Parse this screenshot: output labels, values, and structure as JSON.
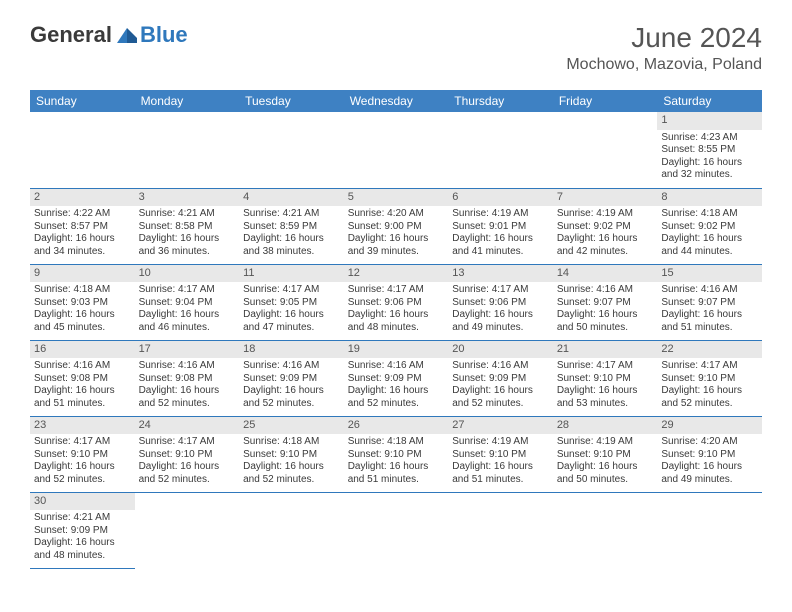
{
  "brand": {
    "general": "General",
    "blue": "Blue"
  },
  "header": {
    "title": "June 2024",
    "location": "Mochowo, Mazovia, Poland"
  },
  "colors": {
    "header_bg": "#3e81c3",
    "header_text": "#ffffff",
    "daynum_bg": "#e8e8e8",
    "border": "#2f78bc",
    "text": "#3a3a3a",
    "title": "#555555",
    "logo_blue": "#2f78bc"
  },
  "weekdays": [
    "Sunday",
    "Monday",
    "Tuesday",
    "Wednesday",
    "Thursday",
    "Friday",
    "Saturday"
  ],
  "weeks": [
    [
      null,
      null,
      null,
      null,
      null,
      null,
      {
        "n": "1",
        "sr": "Sunrise: 4:23 AM",
        "ss": "Sunset: 8:55 PM",
        "d1": "Daylight: 16 hours",
        "d2": "and 32 minutes."
      }
    ],
    [
      {
        "n": "2",
        "sr": "Sunrise: 4:22 AM",
        "ss": "Sunset: 8:57 PM",
        "d1": "Daylight: 16 hours",
        "d2": "and 34 minutes."
      },
      {
        "n": "3",
        "sr": "Sunrise: 4:21 AM",
        "ss": "Sunset: 8:58 PM",
        "d1": "Daylight: 16 hours",
        "d2": "and 36 minutes."
      },
      {
        "n": "4",
        "sr": "Sunrise: 4:21 AM",
        "ss": "Sunset: 8:59 PM",
        "d1": "Daylight: 16 hours",
        "d2": "and 38 minutes."
      },
      {
        "n": "5",
        "sr": "Sunrise: 4:20 AM",
        "ss": "Sunset: 9:00 PM",
        "d1": "Daylight: 16 hours",
        "d2": "and 39 minutes."
      },
      {
        "n": "6",
        "sr": "Sunrise: 4:19 AM",
        "ss": "Sunset: 9:01 PM",
        "d1": "Daylight: 16 hours",
        "d2": "and 41 minutes."
      },
      {
        "n": "7",
        "sr": "Sunrise: 4:19 AM",
        "ss": "Sunset: 9:02 PM",
        "d1": "Daylight: 16 hours",
        "d2": "and 42 minutes."
      },
      {
        "n": "8",
        "sr": "Sunrise: 4:18 AM",
        "ss": "Sunset: 9:02 PM",
        "d1": "Daylight: 16 hours",
        "d2": "and 44 minutes."
      }
    ],
    [
      {
        "n": "9",
        "sr": "Sunrise: 4:18 AM",
        "ss": "Sunset: 9:03 PM",
        "d1": "Daylight: 16 hours",
        "d2": "and 45 minutes."
      },
      {
        "n": "10",
        "sr": "Sunrise: 4:17 AM",
        "ss": "Sunset: 9:04 PM",
        "d1": "Daylight: 16 hours",
        "d2": "and 46 minutes."
      },
      {
        "n": "11",
        "sr": "Sunrise: 4:17 AM",
        "ss": "Sunset: 9:05 PM",
        "d1": "Daylight: 16 hours",
        "d2": "and 47 minutes."
      },
      {
        "n": "12",
        "sr": "Sunrise: 4:17 AM",
        "ss": "Sunset: 9:06 PM",
        "d1": "Daylight: 16 hours",
        "d2": "and 48 minutes."
      },
      {
        "n": "13",
        "sr": "Sunrise: 4:17 AM",
        "ss": "Sunset: 9:06 PM",
        "d1": "Daylight: 16 hours",
        "d2": "and 49 minutes."
      },
      {
        "n": "14",
        "sr": "Sunrise: 4:16 AM",
        "ss": "Sunset: 9:07 PM",
        "d1": "Daylight: 16 hours",
        "d2": "and 50 minutes."
      },
      {
        "n": "15",
        "sr": "Sunrise: 4:16 AM",
        "ss": "Sunset: 9:07 PM",
        "d1": "Daylight: 16 hours",
        "d2": "and 51 minutes."
      }
    ],
    [
      {
        "n": "16",
        "sr": "Sunrise: 4:16 AM",
        "ss": "Sunset: 9:08 PM",
        "d1": "Daylight: 16 hours",
        "d2": "and 51 minutes."
      },
      {
        "n": "17",
        "sr": "Sunrise: 4:16 AM",
        "ss": "Sunset: 9:08 PM",
        "d1": "Daylight: 16 hours",
        "d2": "and 52 minutes."
      },
      {
        "n": "18",
        "sr": "Sunrise: 4:16 AM",
        "ss": "Sunset: 9:09 PM",
        "d1": "Daylight: 16 hours",
        "d2": "and 52 minutes."
      },
      {
        "n": "19",
        "sr": "Sunrise: 4:16 AM",
        "ss": "Sunset: 9:09 PM",
        "d1": "Daylight: 16 hours",
        "d2": "and 52 minutes."
      },
      {
        "n": "20",
        "sr": "Sunrise: 4:16 AM",
        "ss": "Sunset: 9:09 PM",
        "d1": "Daylight: 16 hours",
        "d2": "and 52 minutes."
      },
      {
        "n": "21",
        "sr": "Sunrise: 4:17 AM",
        "ss": "Sunset: 9:10 PM",
        "d1": "Daylight: 16 hours",
        "d2": "and 53 minutes."
      },
      {
        "n": "22",
        "sr": "Sunrise: 4:17 AM",
        "ss": "Sunset: 9:10 PM",
        "d1": "Daylight: 16 hours",
        "d2": "and 52 minutes."
      }
    ],
    [
      {
        "n": "23",
        "sr": "Sunrise: 4:17 AM",
        "ss": "Sunset: 9:10 PM",
        "d1": "Daylight: 16 hours",
        "d2": "and 52 minutes."
      },
      {
        "n": "24",
        "sr": "Sunrise: 4:17 AM",
        "ss": "Sunset: 9:10 PM",
        "d1": "Daylight: 16 hours",
        "d2": "and 52 minutes."
      },
      {
        "n": "25",
        "sr": "Sunrise: 4:18 AM",
        "ss": "Sunset: 9:10 PM",
        "d1": "Daylight: 16 hours",
        "d2": "and 52 minutes."
      },
      {
        "n": "26",
        "sr": "Sunrise: 4:18 AM",
        "ss": "Sunset: 9:10 PM",
        "d1": "Daylight: 16 hours",
        "d2": "and 51 minutes."
      },
      {
        "n": "27",
        "sr": "Sunrise: 4:19 AM",
        "ss": "Sunset: 9:10 PM",
        "d1": "Daylight: 16 hours",
        "d2": "and 51 minutes."
      },
      {
        "n": "28",
        "sr": "Sunrise: 4:19 AM",
        "ss": "Sunset: 9:10 PM",
        "d1": "Daylight: 16 hours",
        "d2": "and 50 minutes."
      },
      {
        "n": "29",
        "sr": "Sunrise: 4:20 AM",
        "ss": "Sunset: 9:10 PM",
        "d1": "Daylight: 16 hours",
        "d2": "and 49 minutes."
      }
    ],
    [
      {
        "n": "30",
        "sr": "Sunrise: 4:21 AM",
        "ss": "Sunset: 9:09 PM",
        "d1": "Daylight: 16 hours",
        "d2": "and 48 minutes."
      },
      null,
      null,
      null,
      null,
      null,
      null
    ]
  ]
}
